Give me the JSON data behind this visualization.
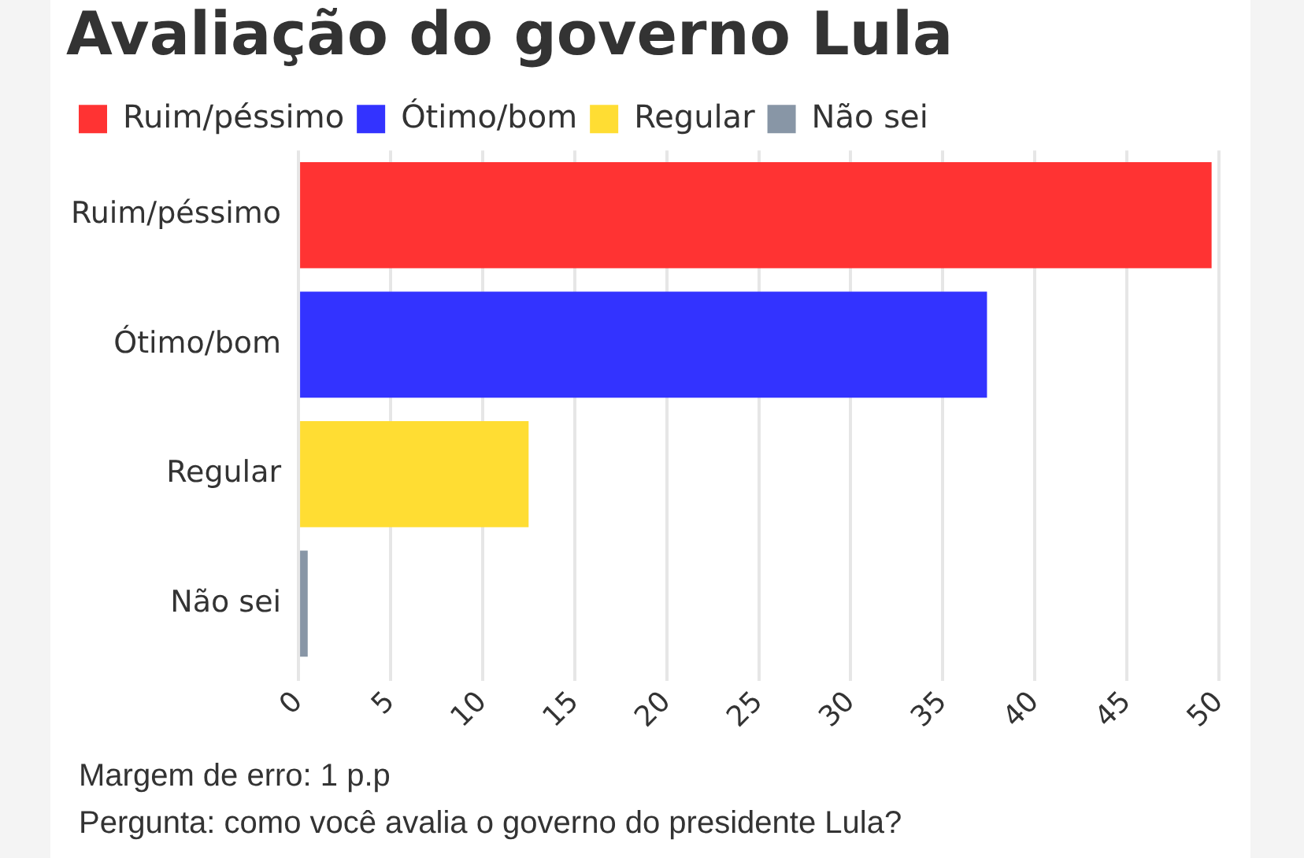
{
  "chart_data": {
    "type": "bar",
    "orientation": "horizontal",
    "title": "Avaliação do governo Lula",
    "categories": [
      "Ruim/péssimo",
      "Ótimo/bom",
      "Regular",
      "Não sei"
    ],
    "series": [
      {
        "name": "Ruim/péssimo",
        "color": "#ff3333",
        "values": [
          49.6,
          null,
          null,
          null
        ]
      },
      {
        "name": "Ótimo/bom",
        "color": "#3333ff",
        "values": [
          null,
          37.4,
          null,
          null
        ]
      },
      {
        "name": "Regular",
        "color": "#ffdd33",
        "values": [
          null,
          null,
          12.5,
          null
        ]
      },
      {
        "name": "Não sei",
        "color": "#8896a6",
        "values": [
          null,
          null,
          null,
          0.5
        ]
      }
    ],
    "xlim": [
      0,
      50
    ],
    "xticks": [
      0,
      5,
      10,
      15,
      20,
      25,
      30,
      35,
      40,
      45,
      50
    ],
    "grid": "x",
    "legend": "top left",
    "annotations": [
      "Margem de erro: 1 p.p",
      "Pergunta: como você avalia o governo do presidente Lula?"
    ]
  }
}
